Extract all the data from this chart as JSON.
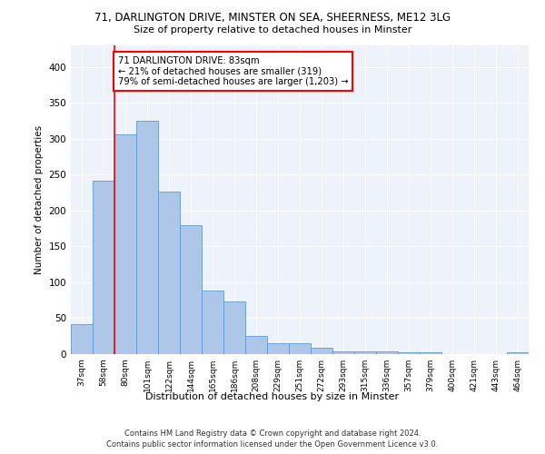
{
  "title_line1": "71, DARLINGTON DRIVE, MINSTER ON SEA, SHEERNESS, ME12 3LG",
  "title_line2": "Size of property relative to detached houses in Minster",
  "xlabel": "Distribution of detached houses by size in Minster",
  "ylabel": "Number of detached properties",
  "categories": [
    "37sqm",
    "58sqm",
    "80sqm",
    "101sqm",
    "122sqm",
    "144sqm",
    "165sqm",
    "186sqm",
    "208sqm",
    "229sqm",
    "251sqm",
    "272sqm",
    "293sqm",
    "315sqm",
    "336sqm",
    "357sqm",
    "379sqm",
    "400sqm",
    "421sqm",
    "443sqm",
    "464sqm"
  ],
  "values": [
    42,
    242,
    306,
    325,
    227,
    180,
    88,
    73,
    25,
    15,
    15,
    9,
    4,
    4,
    4,
    3,
    3,
    0,
    0,
    0,
    3
  ],
  "bar_color": "#aec6e8",
  "bar_edge_color": "#5b9bd5",
  "red_line_index": 2,
  "annotation_text": "71 DARLINGTON DRIVE: 83sqm\n← 21% of detached houses are smaller (319)\n79% of semi-detached houses are larger (1,203) →",
  "annotation_box_color": "white",
  "annotation_box_edge": "red",
  "ylim": [
    0,
    430
  ],
  "yticks": [
    0,
    50,
    100,
    150,
    200,
    250,
    300,
    350,
    400
  ],
  "footer_line1": "Contains HM Land Registry data © Crown copyright and database right 2024.",
  "footer_line2": "Contains public sector information licensed under the Open Government Licence v3.0.",
  "background_color": "#eef2fa"
}
